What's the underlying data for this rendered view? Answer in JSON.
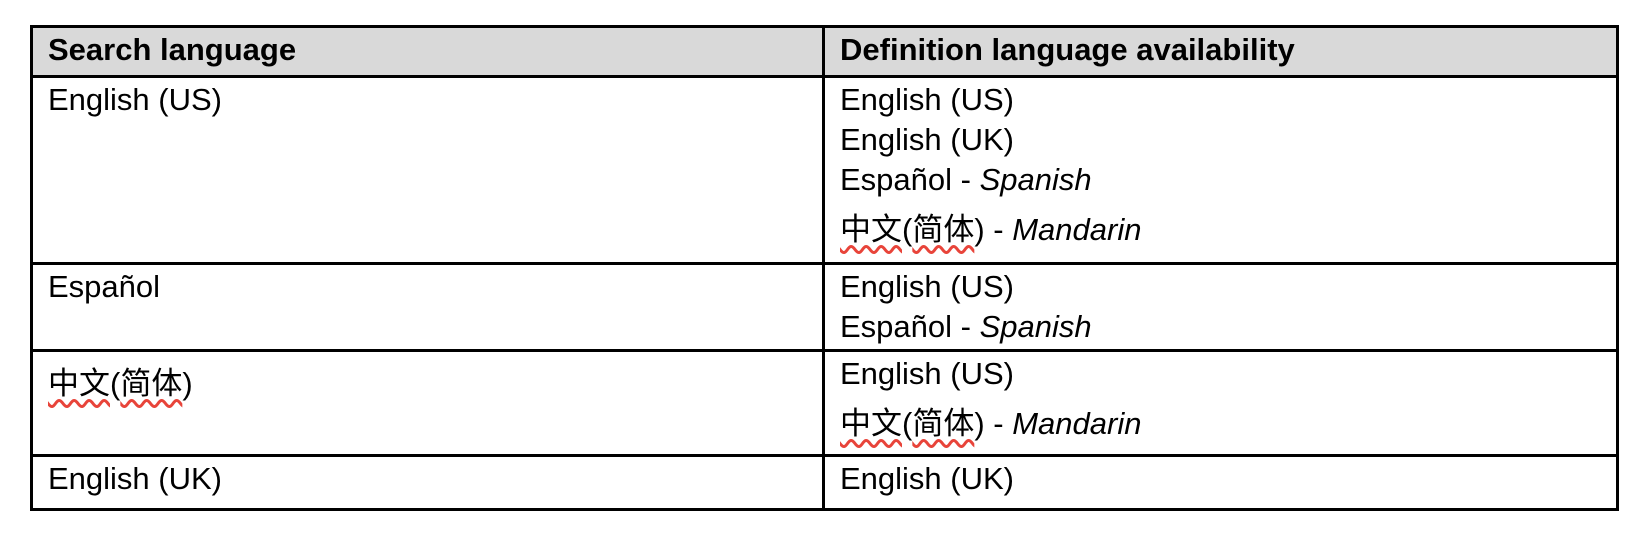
{
  "colors": {
    "header_background": "#d9d9d9",
    "border": "#000000",
    "text": "#000000",
    "spellcheck_squiggle": "#e8443a"
  },
  "table": {
    "columns": [
      {
        "label": "Search language"
      },
      {
        "label": "Definition language availability"
      }
    ],
    "rows": [
      {
        "search_language": {
          "lines": [
            {
              "segments": [
                {
                  "t": "English (US)"
                }
              ]
            }
          ]
        },
        "definition_availability": {
          "lines": [
            {
              "segments": [
                {
                  "t": "English (US)"
                }
              ]
            },
            {
              "segments": [
                {
                  "t": "English (UK)"
                }
              ]
            },
            {
              "segments": [
                {
                  "t": "Español - "
                },
                {
                  "t": "Spanish",
                  "italic": true
                }
              ]
            },
            {
              "cjk": true,
              "segments": [
                {
                  "t": "中文",
                  "squiggle": true
                },
                {
                  "t": "("
                },
                {
                  "t": "简体",
                  "squiggle": true
                },
                {
                  "t": ") - "
                },
                {
                  "t": "Mandarin",
                  "italic": true
                }
              ]
            }
          ]
        }
      },
      {
        "search_language": {
          "lines": [
            {
              "segments": [
                {
                  "t": "Español"
                }
              ]
            }
          ]
        },
        "definition_availability": {
          "lines": [
            {
              "segments": [
                {
                  "t": "English (US)"
                }
              ]
            },
            {
              "segments": [
                {
                  "t": "Español - "
                },
                {
                  "t": "Spanish",
                  "italic": true
                }
              ]
            }
          ]
        }
      },
      {
        "search_language": {
          "lines": [
            {
              "cjk": true,
              "segments": [
                {
                  "t": "中文",
                  "squiggle": true
                },
                {
                  "t": "("
                },
                {
                  "t": "简体",
                  "squiggle": true
                },
                {
                  "t": ")"
                }
              ]
            }
          ]
        },
        "definition_availability": {
          "lines": [
            {
              "segments": [
                {
                  "t": "English (US)"
                }
              ]
            },
            {
              "cjk": true,
              "segments": [
                {
                  "t": "中文",
                  "squiggle": true
                },
                {
                  "t": "("
                },
                {
                  "t": "简体",
                  "squiggle": true
                },
                {
                  "t": ") - "
                },
                {
                  "t": "Mandarin",
                  "italic": true
                }
              ]
            }
          ]
        }
      },
      {
        "search_language": {
          "lines": [
            {
              "segments": [
                {
                  "t": "English (UK)"
                }
              ]
            }
          ]
        },
        "definition_availability": {
          "lines": [
            {
              "segments": [
                {
                  "t": "English (UK)"
                }
              ]
            }
          ]
        }
      }
    ]
  }
}
